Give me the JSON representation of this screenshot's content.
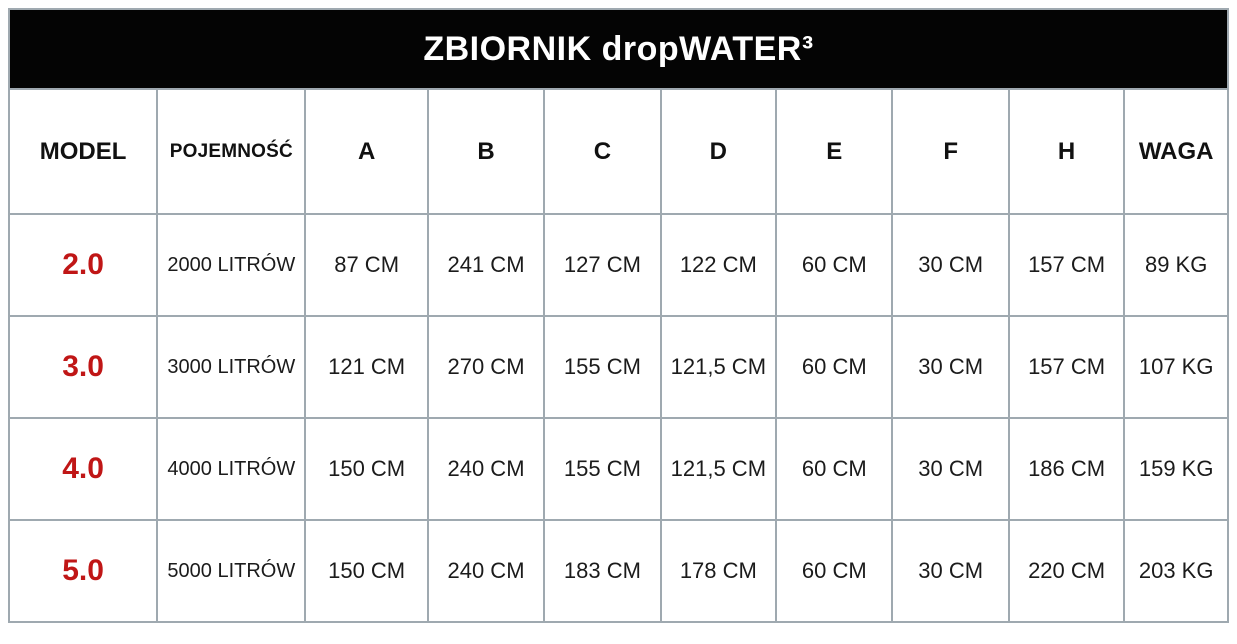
{
  "title": "ZBIORNIK dropWATER³",
  "colors": {
    "accent_red": "#c01616",
    "title_bar_bg": "#040404",
    "title_bar_text": "#ffffff",
    "border": "#9fa9b0",
    "body_text": "#1b1b1b"
  },
  "table": {
    "columns": [
      "MODEL",
      "POJEMNOŚĆ",
      "A",
      "B",
      "C",
      "D",
      "E",
      "F",
      "H",
      "WAGA"
    ],
    "rows": [
      [
        "2.0",
        "2000 LITRÓW",
        "87 CM",
        "241 CM",
        "127 CM",
        "122 CM",
        "60 CM",
        "30 CM",
        "157 CM",
        "89 KG"
      ],
      [
        "3.0",
        "3000 LITRÓW",
        "121 CM",
        "270 CM",
        "155 CM",
        "121,5 CM",
        "60 CM",
        "30 CM",
        "157 CM",
        "107 KG"
      ],
      [
        "4.0",
        "4000 LITRÓW",
        "150 CM",
        "240 CM",
        "155 CM",
        "121,5 CM",
        "60 CM",
        "30 CM",
        "186 CM",
        "159 KG"
      ],
      [
        "5.0",
        "5000 LITRÓW",
        "150 CM",
        "240 CM",
        "183 CM",
        "178 CM",
        "60 CM",
        "30 CM",
        "220 CM",
        "203 KG"
      ]
    ]
  }
}
